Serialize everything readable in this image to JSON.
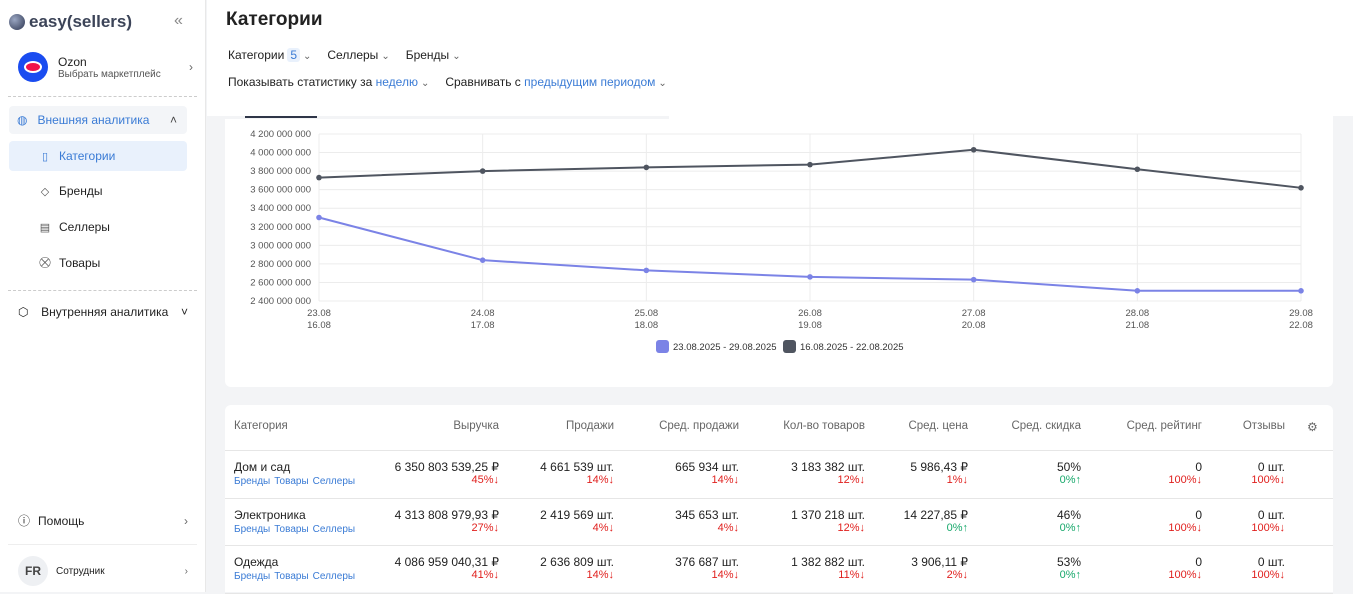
{
  "sidebar": {
    "logo": "easy(sellers)",
    "marketplace": {
      "name": "Ozon",
      "sub": "Выбрать маркетплейс"
    },
    "external": "Внешняя аналитика",
    "items": [
      {
        "label": "Категории",
        "icon": "categories-icon"
      },
      {
        "label": "Бренды",
        "icon": "tag-icon"
      },
      {
        "label": "Селлеры",
        "icon": "store-icon"
      },
      {
        "label": "Товары",
        "icon": "cart-icon"
      }
    ],
    "internal": "Внутренняя аналитика",
    "help": "Помощь",
    "user": {
      "initials": "FR",
      "role": "Сотрудник"
    }
  },
  "header": {
    "title": "Категории",
    "filters": {
      "categories": "Категории",
      "categories_count": "5",
      "sellers": "Селлеры",
      "brands": "Бренды"
    },
    "period_prefix": "Показывать статистику за",
    "period_value": "неделю",
    "compare_prefix": "Сравнивать с",
    "compare_value": "предыдущим периодом"
  },
  "colors": {
    "current": "#7b83e6",
    "previous": "#4f5560",
    "accent": "#3a7bd5",
    "down": "#e0201e",
    "up": "#17a86b"
  },
  "chart_data": {
    "type": "line",
    "ylim": [
      2400000000,
      4200000000
    ],
    "yticks": [
      "4 200 000 000",
      "4 000 000 000",
      "3 800 000 000",
      "3 600 000 000",
      "3 400 000 000",
      "3 200 000 000",
      "3 000 000 000",
      "2 800 000 000",
      "2 600 000 000",
      "2 400 000 000"
    ],
    "x": [
      "23.08",
      "24.08",
      "25.08",
      "26.08",
      "27.08",
      "28.08",
      "29.08"
    ],
    "x2": [
      "16.08",
      "17.08",
      "18.08",
      "19.08",
      "20.08",
      "21.08",
      "22.08"
    ],
    "series": [
      {
        "name": "23.08.2025 - 29.08.2025",
        "color": "#7b83e6",
        "values": [
          3300000000,
          2840000000,
          2730000000,
          2660000000,
          2630000000,
          2510000000,
          2510000000
        ]
      },
      {
        "name": "16.08.2025 - 22.08.2025",
        "color": "#4f5560",
        "values": [
          3730000000,
          3800000000,
          3840000000,
          3870000000,
          4030000000,
          3820000000,
          3620000000
        ]
      }
    ],
    "legend": "bottom",
    "grid": true
  },
  "table": {
    "headers": [
      "Категория",
      "Выручка",
      "Продажи",
      "Сред. продажи",
      "Кол-во товаров",
      "Сред. цена",
      "Сред. скидка",
      "Сред. рейтинг",
      "Отзывы"
    ],
    "links": [
      "Бренды",
      "Товары",
      "Селлеры"
    ],
    "rows": [
      {
        "name": "Дом и сад",
        "cells": [
          [
            "6 350 803 539,25 ₽",
            "45%",
            "down"
          ],
          [
            "4 661 539 шт.",
            "14%",
            "down"
          ],
          [
            "665 934 шт.",
            "14%",
            "down"
          ],
          [
            "3 183 382 шт.",
            "12%",
            "down"
          ],
          [
            "5 986,43 ₽",
            "1%",
            "down"
          ],
          [
            "50%",
            "0%",
            "up"
          ],
          [
            "0",
            "100%",
            "down"
          ],
          [
            "0 шт.",
            "100%",
            "down"
          ]
        ]
      },
      {
        "name": "Электроника",
        "cells": [
          [
            "4 313 808 979,93 ₽",
            "27%",
            "down"
          ],
          [
            "2 419 569 шт.",
            "4%",
            "down"
          ],
          [
            "345 653 шт.",
            "4%",
            "down"
          ],
          [
            "1 370 218 шт.",
            "12%",
            "down"
          ],
          [
            "14 227,85 ₽",
            "0%",
            "up"
          ],
          [
            "46%",
            "0%",
            "up"
          ],
          [
            "0",
            "100%",
            "down"
          ],
          [
            "0 шт.",
            "100%",
            "down"
          ]
        ]
      },
      {
        "name": "Одежда",
        "cells": [
          [
            "4 086 959 040,31 ₽",
            "41%",
            "down"
          ],
          [
            "2 636 809 шт.",
            "14%",
            "down"
          ],
          [
            "376 687 шт.",
            "14%",
            "down"
          ],
          [
            "1 382 882 шт.",
            "11%",
            "down"
          ],
          [
            "3 906,11 ₽",
            "2%",
            "down"
          ],
          [
            "53%",
            "0%",
            "up"
          ],
          [
            "0",
            "100%",
            "down"
          ],
          [
            "0 шт.",
            "100%",
            "down"
          ]
        ]
      }
    ]
  }
}
